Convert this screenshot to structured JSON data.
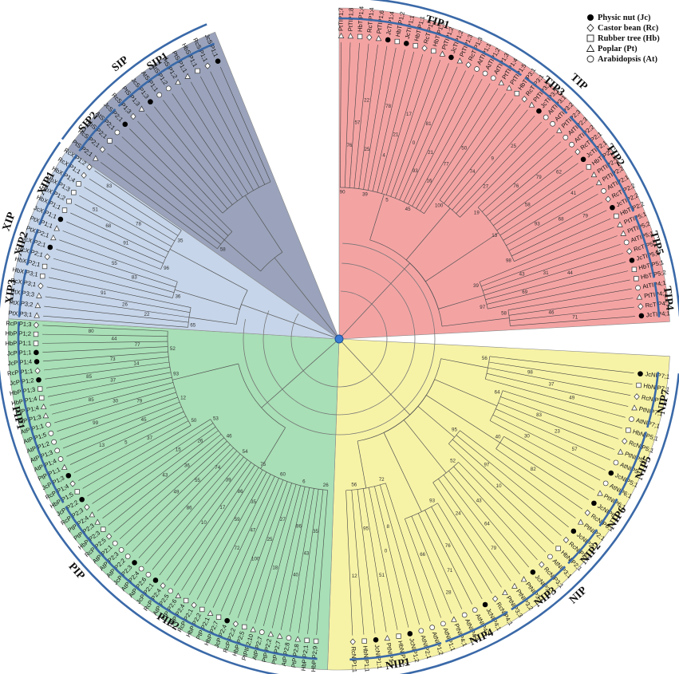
{
  "colors": {
    "TIP": "#f4a3a3",
    "NIP": "#f7f3a6",
    "PIP": "#a8dfb6",
    "XIP": "#c6d5e9",
    "SIP": "#9aa3bb",
    "arc": "#3a69a8"
  },
  "legend": [
    {
      "symbol": "circle-filled",
      "label": "Physic nut (Jc)"
    },
    {
      "symbol": "diamond",
      "label": "Castor bean (Rc)"
    },
    {
      "symbol": "square",
      "label": "Rubber tree (Hb)"
    },
    {
      "symbol": "triangle",
      "label": "Poplar (Pt)"
    },
    {
      "symbol": "circle-open",
      "label": "Arabidopsis (At)"
    }
  ],
  "groups": [
    {
      "key": "TIP",
      "label": "TIP",
      "subfamilies": [
        {
          "label": "TIP1",
          "genes": [
            "PtTIP1;7",
            "PtTIP1;8",
            "HbTIP1;4",
            "RcTIP1;4",
            "PtTIP1;6",
            "JcTIP1;4",
            "HbTIP1;2",
            "JcTIP1;1",
            "HbTIP1;1",
            "RcTIP1;1",
            "HbTIP1;3",
            "PtTIP1;2",
            "JcTIP1;2",
            "PtTIP1;3",
            "RcTIP1;3",
            "AtTIP1;1",
            "AtTIP1;2",
            "AtTIP1;3",
            "PtTIP1;4",
            "PtTIP1;5"
          ]
        },
        {
          "label": "TIP3",
          "genes": [
            "HbTIP3;1",
            "RcTIP3;1",
            "PtTIP3;1",
            "JcTIP3;1",
            "AtTIP3;1",
            "AtTIP3;2"
          ]
        },
        {
          "label": "TIP2",
          "genes": [
            "PtTIP2;3",
            "AtTIP2;3",
            "AtTIP2;2",
            "RcTIP2;1",
            "JcTIP2;1",
            "HbTIP2;1",
            "PtTIP2;1",
            "PtTIP2;2",
            "AtTIP2;1",
            "RcTIP2;2",
            "JcTIP2;2",
            "HbTIP2;2"
          ]
        },
        {
          "label": "TIP5",
          "genes": [
            "PtTIP5;1",
            "PtTIP5;2",
            "AtTIP5;1",
            "RcTIP5;1",
            "JcTIP5;1",
            "HbTIP5;1",
            "HbTIP5;2"
          ]
        },
        {
          "label": "TIP4",
          "genes": [
            "AtTIP4;1",
            "PtTIP4;1",
            "RcTIP4;1",
            "JcTIP4;1"
          ]
        }
      ]
    },
    {
      "key": "NIP",
      "label": "NIP",
      "subfamilies": [
        {
          "label": "NIP7",
          "genes": [
            "JcNIP7;1",
            "HbNIP7;1",
            "RcNIP7;1",
            "PtNIP7;1",
            "AtNIP7;1"
          ]
        },
        {
          "label": "NIP5",
          "genes": [
            "HbNIP5;1",
            "RcNIP5;1",
            "PtNIP5;1",
            "AtNIP5;1",
            "JcNIP5;1",
            "AtNIP6;1"
          ]
        },
        {
          "label": "NIP6",
          "genes": [
            "PtNIP6;1",
            "JcNIP6;1",
            "RcNIP6;1"
          ]
        },
        {
          "label": "NIP2",
          "genes": [
            "PtNIP2;1",
            "JcNIP2;1",
            "RcNIP2;1",
            "HbNIP2;1"
          ]
        },
        {
          "label": "NIP3",
          "genes": [
            "AtNIP3;1",
            "RcNIP3;1",
            "JcNIP3;1",
            "PtNIP3;1",
            "PtNIP3;2",
            "PtNIP3;3"
          ]
        },
        {
          "label": "NIP4",
          "genes": [
            "RcNIP4;1",
            "JcNIP4;1",
            "AtNIP4;1",
            "AtNIP4;2",
            "PtNIP4;1",
            "AtNIP1;1"
          ]
        },
        {
          "label": "NIP1",
          "genes": [
            "AtNIP1;2",
            "AtNIP2;1",
            "JcNIP1;2",
            "HbNIP1;2",
            "PtNIP1;1",
            "JcNIP1;1",
            "HbNIP1;1",
            "RcNIP1;1"
          ]
        }
      ]
    },
    {
      "key": "PIP",
      "label": "PIP",
      "subfamilies": [
        {
          "label": "PIP2",
          "genes": [
            "HbPIP2;9",
            "HbPIP2;1",
            "PtPIP2;8",
            "AtPIP2;8",
            "PtPIP2;7",
            "PtPIP2;2",
            "AtPIP2;7",
            "PtPIP2;10",
            "HbPIP2;5",
            "RcPIP2;2",
            "JcPIP2;4",
            "HbPIP2;7",
            "PtPIP2;1",
            "HbPIP2;2",
            "RcPIP2;1",
            "HbPIP2;4",
            "PtPIP2;6",
            "AtPIP2;5",
            "RcPIP2;4",
            "JcPIP2;1",
            "AtPIP2;6",
            "AtPIP2;4",
            "JcPIP2;3",
            "AtPIP2;2",
            "AtPIP2;3",
            "AtPIP2;1",
            "RcPIP2;5",
            "HbPIP2;3",
            "PtPIP2;3",
            "PtPIP2;4",
            "RcPIP2;3",
            "JcPIP2;2"
          ]
        },
        {
          "label": "PIP1",
          "genes": [
            "HbPIP1;5",
            "RcPIP1;4",
            "JcPIP1;3",
            "PtPIP1;1",
            "AtPIP1;4",
            "AtPIP1;3",
            "AtPIP1;2",
            "AtPIP1;5",
            "AtPIP1;1",
            "PtPIP1;3",
            "PtPIP1;4",
            "HbPIP1;4",
            "HbPIP1;3",
            "JcPIP1;2",
            "RcPIP1;1",
            "JcPIP1;4",
            "JcPIP1;1",
            "HbPIP1;1",
            "HbPIP1;2",
            "RcPIP1;3"
          ]
        }
      ]
    },
    {
      "key": "XIP",
      "label": "XIP",
      "subfamilies": [
        {
          "label": "XIP3",
          "genes": [
            "PtXIP3;1",
            "PtXIP3;2",
            "PtXIP3;3",
            "RcXIP3;1",
            "HbXIP3;1"
          ]
        },
        {
          "label": "XIP2",
          "genes": [
            "HbXIP2;1",
            "RcXIP2;1",
            "JcXIP2;1",
            "PtXIP2;1"
          ]
        },
        {
          "label": "XIP1",
          "genes": [
            "PtXIP1;1",
            "JcXIP1;1",
            "HbXIP1;1",
            "HbXIP1;2",
            "HbXIP1;3",
            "HbXIP1;4",
            "RcXIP1;1",
            "RcXIP1;2"
          ]
        }
      ]
    },
    {
      "key": "SIP",
      "label": "SIP",
      "subfamilies": [
        {
          "label": "SIP2",
          "genes": [
            "PtSIP2;1",
            "RcSIP2;1",
            "HbSIP2;1",
            "AtSIP2;1",
            "JcSIP2;1"
          ]
        },
        {
          "label": "SIP1",
          "genes": [
            "RcSIP1;3",
            "PtSIP1;3",
            "JcSIP1;3",
            "AtSIP1;1",
            "AtSIP1;2",
            "PtSIP1;2",
            "PtSIP1;1",
            "HbSIP1;1",
            "RcSIP1;1",
            "JcSIP1;1"
          ]
        }
      ]
    }
  ],
  "bootstrap_values": [
    "90",
    "76",
    "57",
    "22",
    "25",
    "39",
    "78",
    "4",
    "21",
    "17",
    "5",
    "0",
    "81",
    "93",
    "21",
    "45",
    "16",
    "77",
    "50",
    "100",
    "74",
    "9",
    "25",
    "27",
    "19",
    "76",
    "79",
    "62",
    "58",
    "13",
    "41",
    "93",
    "68",
    "79",
    "98",
    "39",
    "43",
    "31",
    "44",
    "69",
    "97",
    "58",
    "46",
    "71",
    "56",
    "98",
    "37",
    "49",
    "64",
    "83",
    "23",
    "57",
    "30",
    "40",
    "82",
    "95",
    "97",
    "10",
    "52",
    "43",
    "64",
    "79",
    "24",
    "93",
    "76",
    "71",
    "28",
    "66",
    "72",
    "8",
    "0",
    "51",
    "95",
    "56",
    "12",
    "26",
    "35",
    "43",
    "40",
    "86",
    "6",
    "18",
    "27",
    "25",
    "100",
    "60",
    "47",
    "72",
    "35",
    "59",
    "75",
    "86",
    "17",
    "10",
    "39",
    "54",
    "86",
    "74",
    "55",
    "49",
    "46",
    "36",
    "43",
    "26",
    "15",
    "53",
    "50",
    "37",
    "5",
    "13",
    "45",
    "12",
    "99",
    "79",
    "30",
    "85",
    "93",
    "37",
    "85",
    "14",
    "73",
    "52",
    "77",
    "44",
    "80",
    "65",
    "22",
    "26",
    "91",
    "36",
    "83",
    "55",
    "96",
    "91",
    "68",
    "51",
    "78",
    "35",
    "83",
    "58"
  ]
}
